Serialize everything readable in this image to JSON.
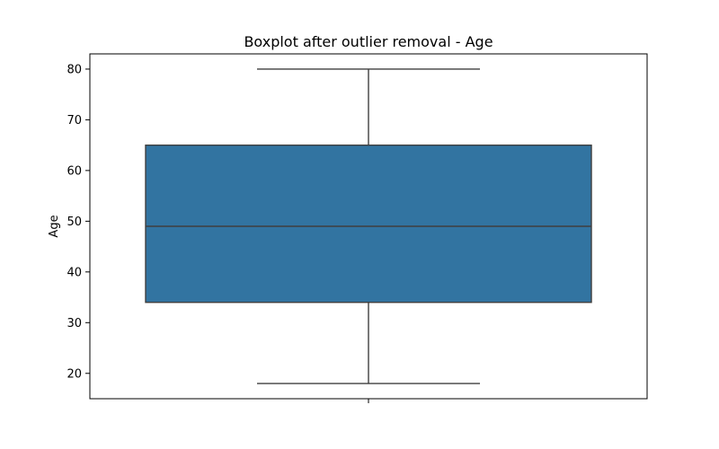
{
  "chart_data": {
    "type": "boxplot",
    "title": "Boxplot after outlier removal - Age",
    "xlabel": "",
    "ylabel": "Age",
    "ylim": [
      15,
      83
    ],
    "yticks": [
      20,
      30,
      40,
      50,
      60,
      70,
      80
    ],
    "grid": false,
    "box": {
      "whisker_low": 18,
      "q1": 34,
      "median": 49,
      "q3": 65,
      "whisker_high": 80
    },
    "colors": {
      "box_fill": "#3274a1",
      "line": "#3f3f3f"
    }
  }
}
